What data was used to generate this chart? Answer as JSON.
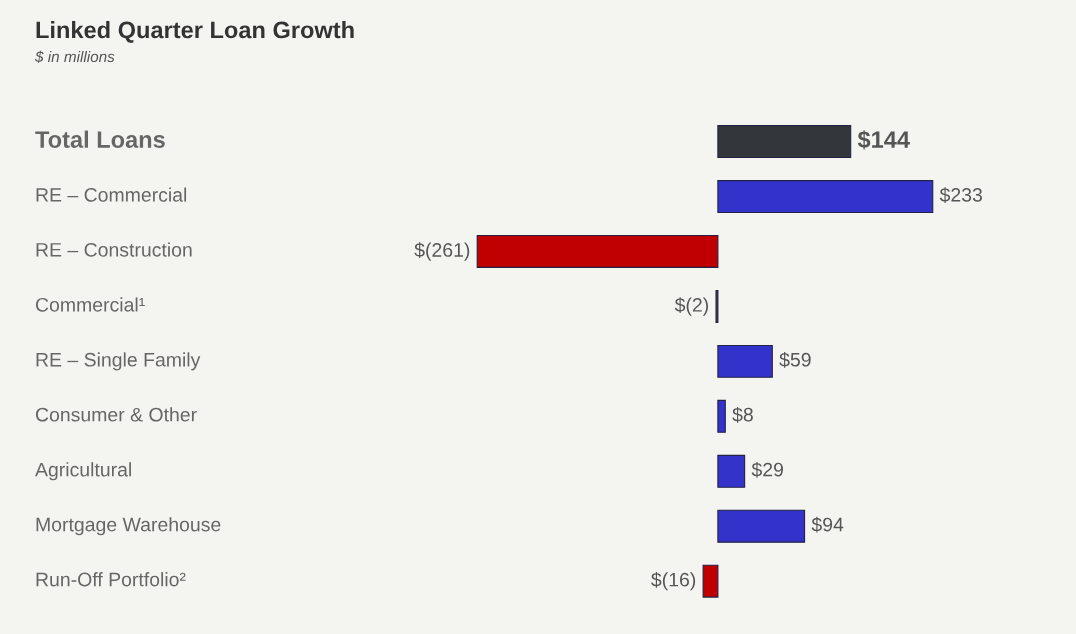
{
  "chart_data": {
    "type": "bar",
    "orientation": "horizontal",
    "title": "Linked Quarter Loan Growth",
    "subtitle": "$ in millions",
    "categories": [
      "Total Loans",
      "RE – Commercial",
      "RE – Construction",
      "Commercial¹",
      "RE – Single Family",
      "Consumer & Other",
      "Agricultural",
      "Mortgage Warehouse",
      "Run-Off Portfolio²"
    ],
    "values": [
      144,
      233,
      -261,
      -2,
      59,
      8,
      29,
      94,
      -16
    ],
    "colors": [
      "#33363a",
      "#3333cc",
      "#c00000",
      "#33363a",
      "#3333cc",
      "#3333cc",
      "#3333cc",
      "#3333cc",
      "#c00000"
    ],
    "value_labels": [
      "$144",
      "$233",
      "$(261)",
      "$(2)",
      "$59",
      "$8",
      "$29",
      "$94",
      "$(16)"
    ]
  }
}
